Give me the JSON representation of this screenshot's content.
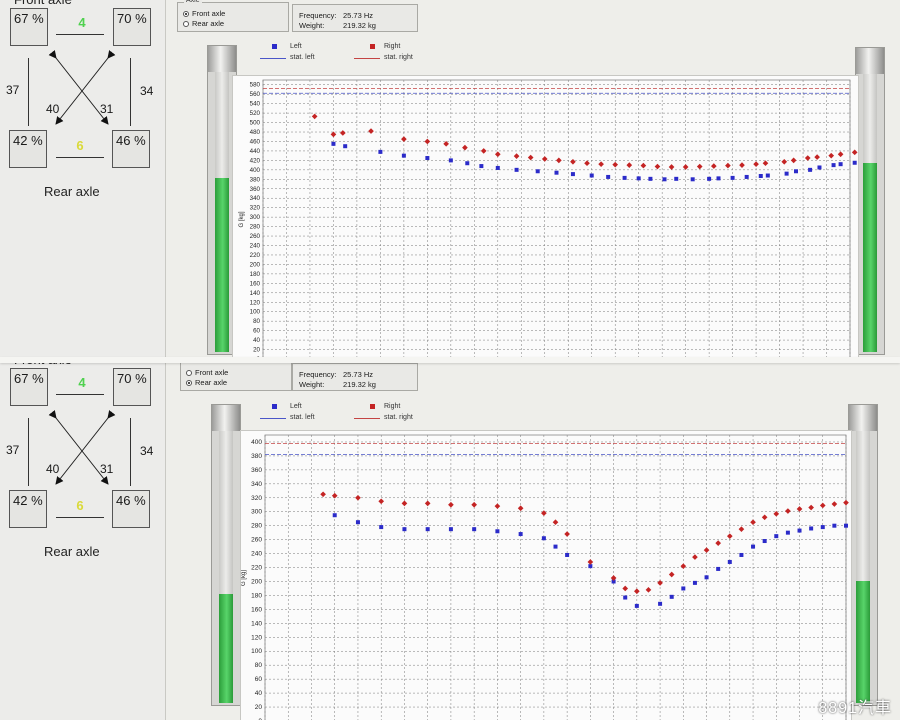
{
  "panels": [
    {
      "axle_title": "Front axle",
      "rear_title": "Rear axle",
      "wheels": {
        "front_left": "67 %",
        "front_right": "70 %",
        "rear_left": "42 %",
        "rear_right": "46 %"
      },
      "front_axle_value": "4",
      "rear_axle_value": "6",
      "side_left": "37",
      "side_right": "34",
      "diag_left": "40",
      "diag_right": "31",
      "axle_group": {
        "legend": "Axle",
        "options": [
          "Front axle",
          "Rear axle"
        ],
        "selected": "Front axle"
      },
      "info": {
        "frequency_label": "Frequency:",
        "frequency_value": "25.73 Hz",
        "weight_label": "Weight:",
        "weight_value": "219.32 kg"
      },
      "gauges": {
        "left_fill": 0.62,
        "right_fill": 0.68
      },
      "legend": {
        "left": "Left",
        "right": "Right",
        "stat_left": "stat. left",
        "stat_right": "stat. right"
      },
      "colors": {
        "left": "#2b2bc9",
        "right": "#c42424",
        "stat_left": "#4a55c8",
        "stat_right": "#c44444"
      }
    },
    {
      "axle_title": "Front axle",
      "rear_title": "Rear axle",
      "wheels": {
        "front_left": "67 %",
        "front_right": "70 %",
        "rear_left": "42 %",
        "rear_right": "46 %"
      },
      "front_axle_value": "4",
      "rear_axle_value": "6",
      "side_left": "37",
      "side_right": "34",
      "diag_left": "40",
      "diag_right": "31",
      "axle_group": {
        "legend": "Axle",
        "options": [
          "Front axle",
          "Rear axle"
        ],
        "selected": "Rear axle"
      },
      "info": {
        "frequency_label": "Frequency:",
        "frequency_value": "25.73 Hz",
        "weight_label": "Weight:",
        "weight_value": "219.32 kg"
      },
      "gauges": {
        "left_fill": 0.4,
        "right_fill": 0.45
      },
      "legend": {
        "left": "Left",
        "right": "Right",
        "stat_left": "stat. left",
        "stat_right": "stat. right"
      },
      "colors": {
        "left": "#2b2bc9",
        "right": "#c42424",
        "stat_left": "#4a55c8",
        "stat_right": "#c44444"
      }
    }
  ],
  "watermark": "8891汽車",
  "chart_data": [
    {
      "type": "scatter",
      "ylabel": "G [kg]",
      "ylim": [
        0,
        590
      ],
      "yticks": [
        0,
        20,
        40,
        60,
        80,
        100,
        120,
        140,
        160,
        180,
        200,
        220,
        240,
        260,
        280,
        300,
        320,
        340,
        360,
        380,
        400,
        420,
        440,
        460,
        480,
        500,
        520,
        540,
        560,
        580
      ],
      "xlim": [
        0,
        25
      ],
      "stat_left": 562,
      "stat_right": 572,
      "series": [
        {
          "name": "Left",
          "x": [
            3,
            3.5,
            5,
            6,
            7,
            8,
            8.7,
            9.3,
            10,
            10.8,
            11.7,
            12.5,
            13.2,
            14,
            14.7,
            15.4,
            16,
            16.5,
            17.1,
            17.6,
            18.3,
            19,
            19.4,
            20,
            20.6,
            21.2,
            21.5,
            22.3,
            22.7,
            23.3,
            23.7,
            24.3,
            24.6,
            25.2,
            25.5
          ],
          "y": [
            455,
            450,
            438,
            430,
            425,
            420,
            414,
            408,
            404,
            400,
            397,
            394,
            391,
            388,
            385,
            383,
            382,
            381,
            380,
            381,
            380,
            381,
            382,
            383,
            385,
            387,
            388,
            392,
            397,
            400,
            405,
            410,
            412,
            415,
            417
          ]
        },
        {
          "name": "Right",
          "x": [
            2.2,
            3,
            3.4,
            4.6,
            6,
            7,
            7.8,
            8.6,
            9.4,
            10,
            10.8,
            11.4,
            12,
            12.6,
            13.2,
            13.8,
            14.4,
            15,
            15.6,
            16.2,
            16.8,
            17.4,
            18,
            18.6,
            19.2,
            19.8,
            20.4,
            21,
            21.4,
            22.2,
            22.6,
            23.2,
            23.6,
            24.2,
            24.6,
            25.2,
            25.5
          ],
          "y": [
            513,
            475,
            478,
            482,
            465,
            460,
            455,
            447,
            440,
            433,
            429,
            426,
            423,
            420,
            417,
            414,
            412,
            411,
            410,
            409,
            407,
            406,
            406,
            407,
            408,
            409,
            410,
            412,
            414,
            417,
            420,
            425,
            427,
            430,
            433,
            437,
            442
          ]
        }
      ]
    },
    {
      "type": "scatter",
      "ylabel": "G [kg]",
      "ylim": [
        0,
        410
      ],
      "yticks": [
        0,
        20,
        40,
        60,
        80,
        100,
        120,
        140,
        160,
        180,
        200,
        220,
        240,
        260,
        280,
        300,
        320,
        340,
        360,
        380,
        400
      ],
      "xlim": [
        0,
        25
      ],
      "stat_left": 382,
      "stat_right": 398,
      "series": [
        {
          "name": "Left",
          "x": [
            3,
            4,
            5,
            6,
            7,
            8,
            9,
            10,
            11,
            12,
            12.5,
            13,
            14,
            15,
            15.5,
            16,
            17,
            17.5,
            18,
            18.5,
            19,
            19.5,
            20,
            20.5,
            21,
            21.5,
            22,
            22.5,
            23,
            23.5,
            24,
            24.5,
            25
          ],
          "y": [
            295,
            285,
            278,
            275,
            275,
            275,
            275,
            272,
            268,
            262,
            250,
            238,
            222,
            200,
            177,
            165,
            168,
            178,
            190,
            198,
            206,
            218,
            228,
            238,
            250,
            258,
            265,
            270,
            273,
            276,
            278,
            280,
            280
          ]
        },
        {
          "name": "Right",
          "x": [
            2.5,
            3,
            4,
            5,
            6,
            7,
            8,
            9,
            10,
            11,
            12,
            12.5,
            13,
            14,
            15,
            15.5,
            16,
            16.5,
            17,
            17.5,
            18,
            18.5,
            19,
            19.5,
            20,
            20.5,
            21,
            21.5,
            22,
            22.5,
            23,
            23.5,
            24,
            24.5,
            25
          ],
          "y": [
            325,
            323,
            320,
            315,
            312,
            312,
            310,
            310,
            308,
            305,
            298,
            285,
            268,
            228,
            205,
            190,
            186,
            188,
            198,
            210,
            222,
            235,
            245,
            255,
            265,
            275,
            285,
            292,
            297,
            301,
            304,
            306,
            309,
            311,
            313
          ]
        }
      ]
    }
  ]
}
